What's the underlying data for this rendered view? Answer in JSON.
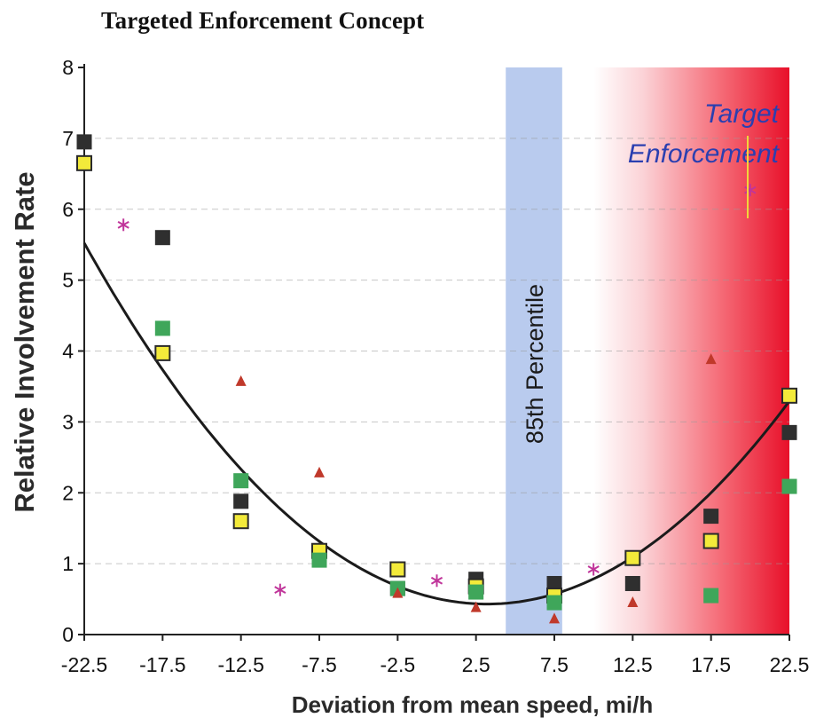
{
  "title": "Targeted Enforcement Concept",
  "chart_data": {
    "type": "scatter",
    "xlabel": "Deviation from mean speed, mi/h",
    "ylabel": "Relative Involvement Rate",
    "xlim": [
      -22.5,
      22.5
    ],
    "ylim": [
      0,
      8
    ],
    "x_ticks": [
      "-22.5",
      "-17.5",
      "-12.5",
      "-7.5",
      "-2.5",
      "2.5",
      "7.5",
      "12.5",
      "17.5",
      "22.5"
    ],
    "y_ticks": [
      "0",
      "1",
      "2",
      "3",
      "4",
      "5",
      "6",
      "7",
      "8"
    ],
    "grid": "dashed horizontal",
    "bands": [
      {
        "label": "85th Percentile",
        "x_start": 4.4,
        "x_end": 8.0,
        "color": "#b9cbee"
      },
      {
        "label": "Target Enforcement",
        "x_start": 10.0,
        "x_end": 22.5,
        "color": "#e8142a"
      }
    ],
    "series": [
      {
        "marker": "square",
        "color": "#2f2f2f",
        "points": [
          [
            -22.5,
            6.95
          ],
          [
            -17.5,
            5.6
          ],
          [
            -12.5,
            1.88
          ],
          [
            -7.5,
            1.12
          ],
          [
            -2.5,
            0.65
          ],
          [
            2.5,
            0.78
          ],
          [
            7.5,
            0.72
          ],
          [
            12.5,
            0.72
          ],
          [
            17.5,
            1.67
          ],
          [
            22.5,
            2.85
          ]
        ]
      },
      {
        "marker": "square",
        "color": "#f3ea3a",
        "points": [
          [
            -22.5,
            6.65
          ],
          [
            -17.5,
            3.97
          ],
          [
            -12.5,
            1.6
          ],
          [
            -7.5,
            1.18
          ],
          [
            -2.5,
            0.92
          ],
          [
            2.5,
            0.68
          ],
          [
            7.5,
            0.55
          ],
          [
            12.5,
            1.08
          ],
          [
            17.5,
            1.32
          ],
          [
            22.5,
            3.37
          ]
        ]
      },
      {
        "marker": "square",
        "color": "#3fa65a",
        "points": [
          [
            -17.5,
            4.32
          ],
          [
            -12.5,
            2.17
          ],
          [
            -7.5,
            1.05
          ],
          [
            -2.5,
            0.65
          ],
          [
            2.5,
            0.6
          ],
          [
            7.5,
            0.45
          ],
          [
            17.5,
            0.55
          ],
          [
            22.5,
            2.09
          ]
        ]
      },
      {
        "marker": "triangle",
        "color": "#c0392b",
        "points": [
          [
            -12.5,
            3.57
          ],
          [
            -7.5,
            2.28
          ],
          [
            -2.5,
            0.58
          ],
          [
            2.5,
            0.38
          ],
          [
            7.5,
            0.22
          ],
          [
            12.5,
            0.45
          ],
          [
            17.5,
            3.88
          ]
        ]
      },
      {
        "marker": "asterisk",
        "color": "#c0359a",
        "points": [
          [
            -20,
            5.78
          ],
          [
            -10,
            0.63
          ],
          [
            0,
            0.76
          ],
          [
            10,
            0.92
          ],
          [
            20,
            6.27
          ]
        ]
      }
    ],
    "trend_curve": {
      "type": "quadratic",
      "coefficients": [
        0.0077,
        -0.0495,
        0.51
      ]
    }
  }
}
